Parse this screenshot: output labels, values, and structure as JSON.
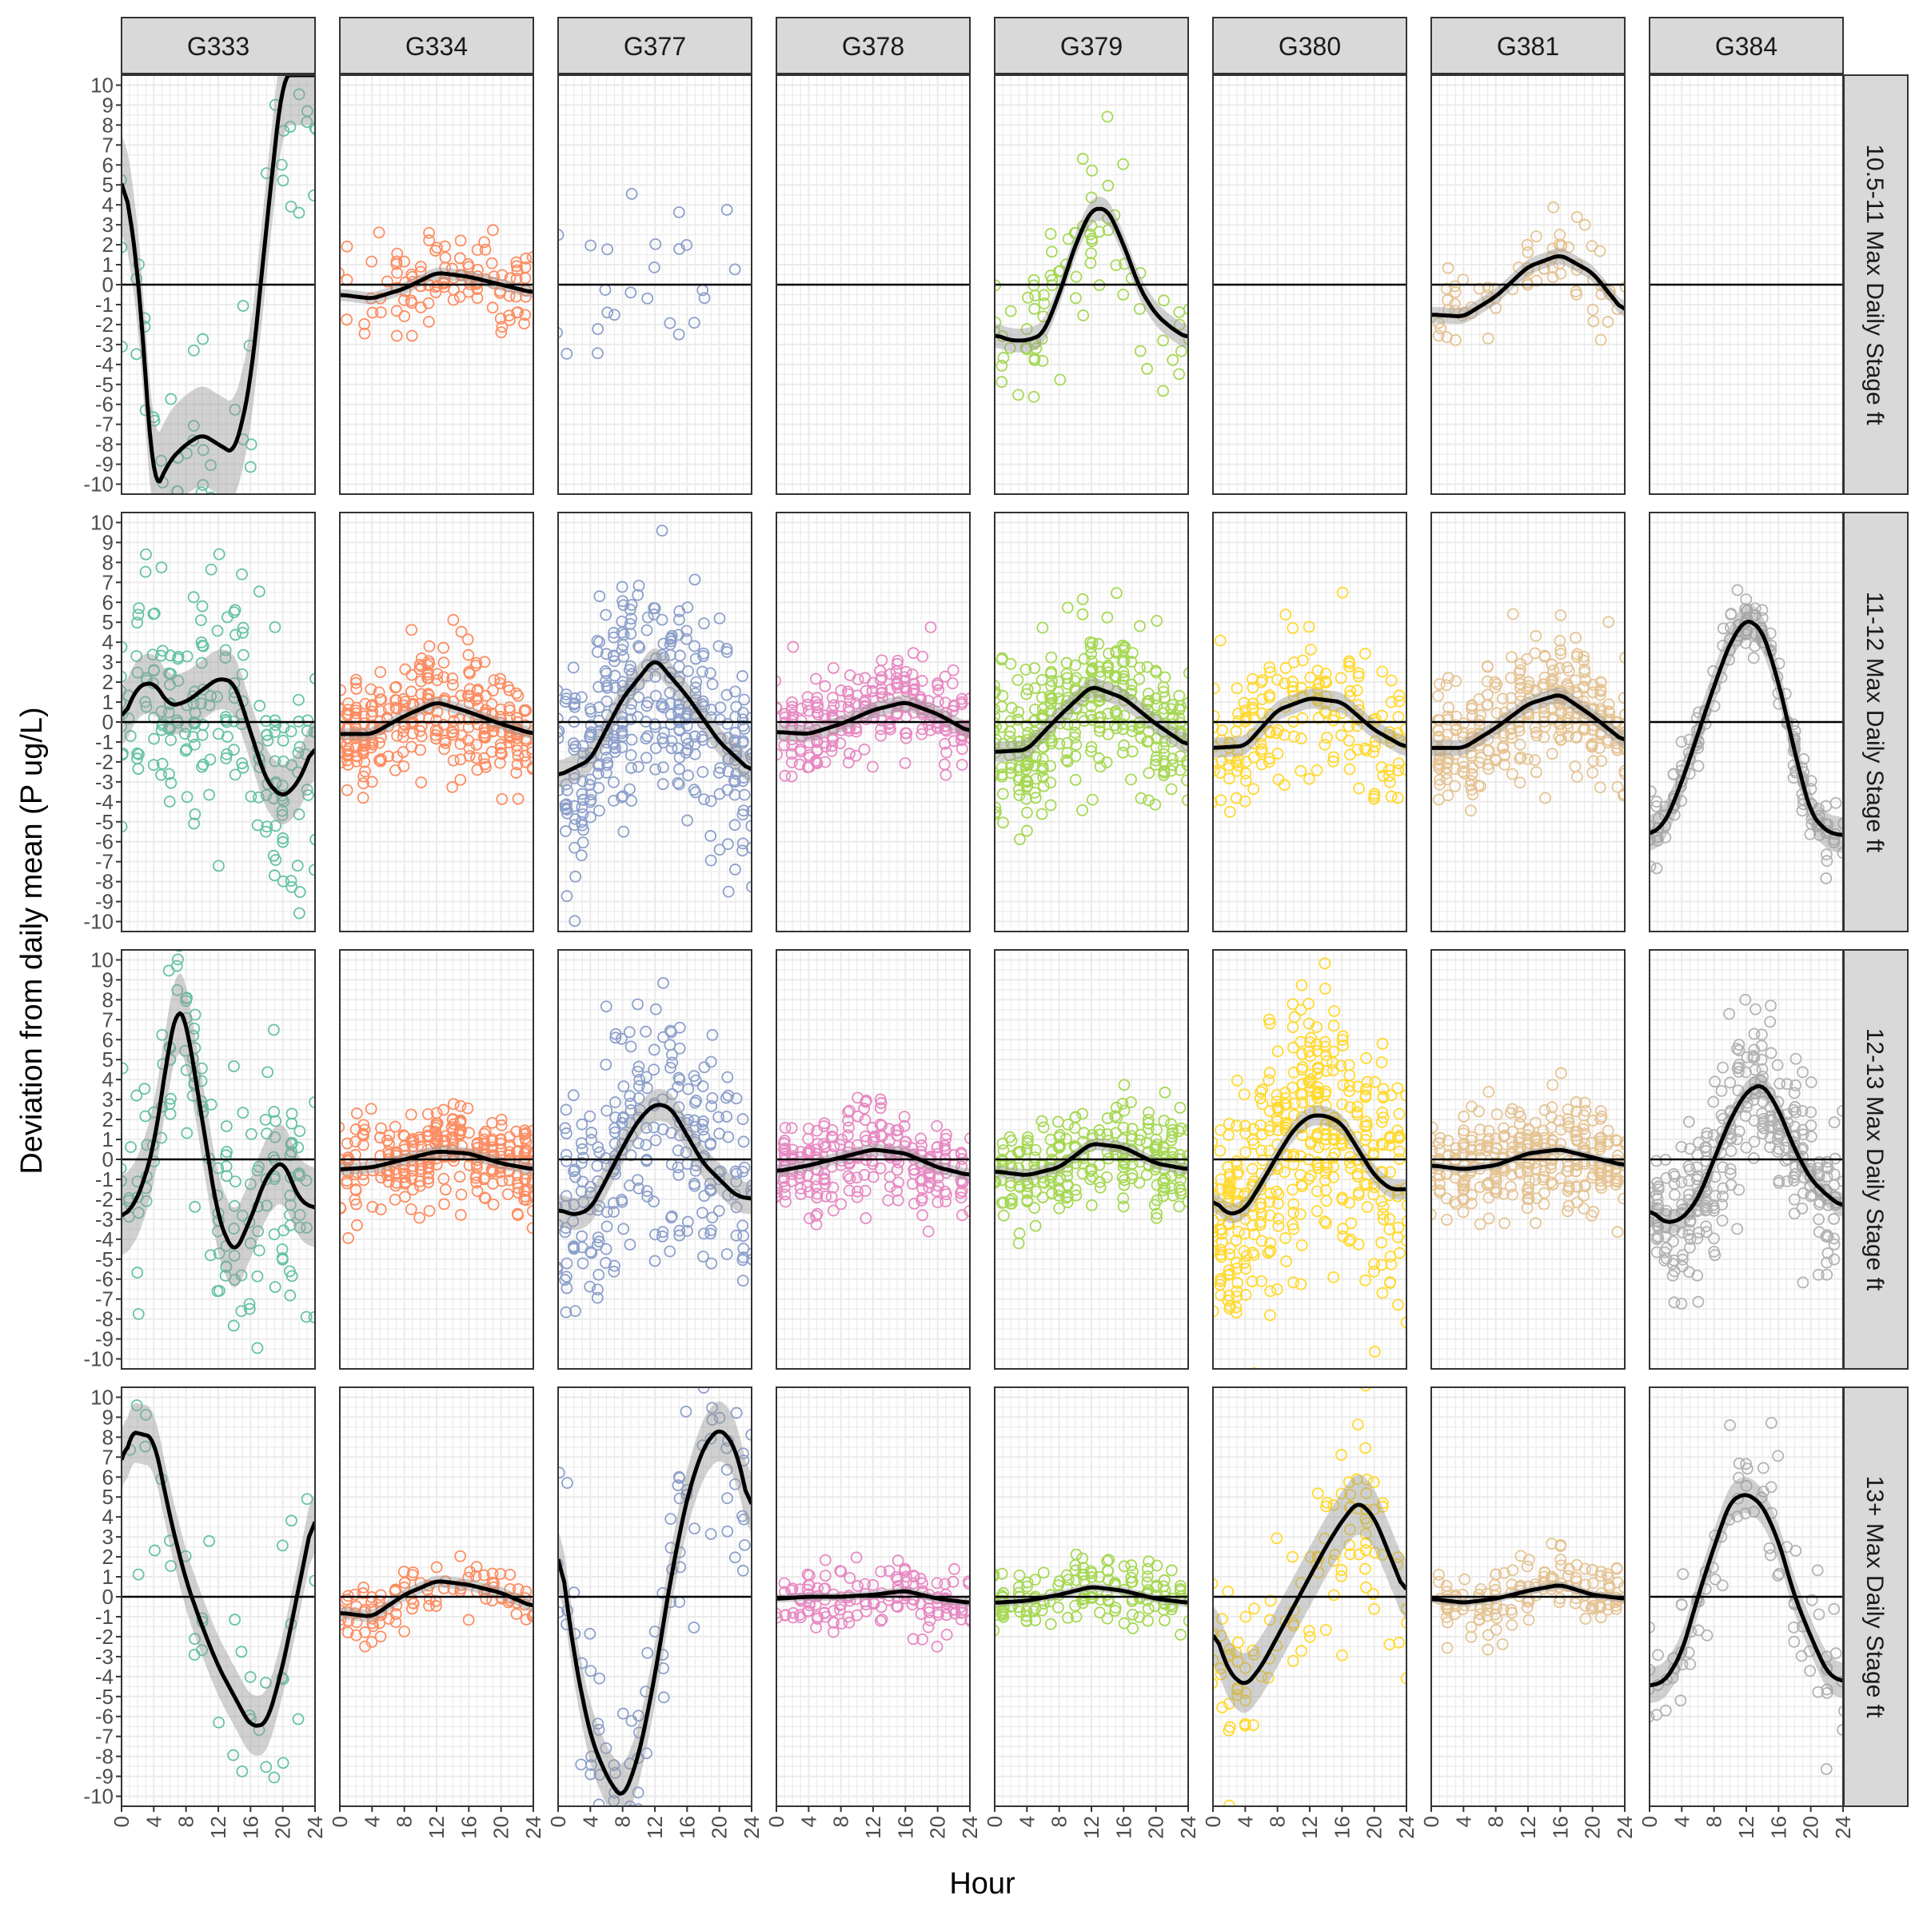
{
  "chart_data": {
    "type": "scatter",
    "xlabel": "Hour",
    "ylabel": "Deviation from daily mean (P ug/L)",
    "xlim": [
      0,
      24
    ],
    "ylim": [
      -10.5,
      10.5
    ],
    "x_ticks": [
      0,
      4,
      8,
      12,
      16,
      20,
      24
    ],
    "y_ticks": [
      -10,
      -9,
      -8,
      -7,
      -6,
      -5,
      -4,
      -3,
      -2,
      -1,
      0,
      1,
      2,
      3,
      4,
      5,
      6,
      7,
      8,
      9,
      10
    ],
    "grid": true,
    "zero_line": 0,
    "legend": "none",
    "columns": [
      {
        "name": "G333",
        "color": "#66C2A5"
      },
      {
        "name": "G334",
        "color": "#FC8D62"
      },
      {
        "name": "G377",
        "color": "#8DA0CB"
      },
      {
        "name": "G378",
        "color": "#E78AC3"
      },
      {
        "name": "G379",
        "color": "#A6D854"
      },
      {
        "name": "G380",
        "color": "#FFD92F"
      },
      {
        "name": "G381",
        "color": "#E5C494"
      },
      {
        "name": "G384",
        "color": "#B3B3B3"
      }
    ],
    "rows": [
      {
        "name": "10.5-11 Max Daily Stage ft"
      },
      {
        "name": "11-12 Max Daily Stage ft"
      },
      {
        "name": "12-13 Max Daily Stage ft"
      },
      {
        "name": "13+ Max Daily Stage ft"
      }
    ],
    "panels": [
      [
        {
          "density": 60,
          "spread": 6,
          "smooth": {
            "x": [
              0,
              2,
              4,
              6,
              8,
              10,
              12,
              14,
              16,
              18,
              20,
              24
            ],
            "y": [
              6,
              1,
              -10.5,
              -8.8,
              -8,
              -7.5,
              -8,
              -8.5,
              -5,
              3,
              10.5,
              10.5
            ]
          },
          "band": 2.5
        },
        {
          "density": 110,
          "spread": 2,
          "smooth": {
            "x": [
              0,
              4,
              8,
              12,
              16,
              20,
              24
            ],
            "y": [
              -0.5,
              -0.7,
              -0.2,
              0.6,
              0.4,
              0,
              -0.4
            ]
          },
          "band": 0.3
        },
        {
          "density": 25,
          "spread": 5,
          "smooth": null,
          "band": 0
        },
        {
          "density": 0,
          "spread": 0,
          "smooth": null,
          "band": 0
        },
        {
          "density": 80,
          "spread": 3,
          "smooth": {
            "x": [
              0,
              2,
              4,
              6,
              8,
              10,
              12,
              14,
              16,
              18,
              20,
              22,
              24
            ],
            "y": [
              -2.5,
              -2.8,
              -2.8,
              -2.5,
              -0.5,
              2,
              3.8,
              3.8,
              2,
              -0.2,
              -1.5,
              -2.2,
              -2.7
            ]
          },
          "band": 0.6
        },
        {
          "density": 0,
          "spread": 0,
          "smooth": null,
          "band": 0
        },
        {
          "density": 70,
          "spread": 1.8,
          "smooth": {
            "x": [
              0,
              4,
              8,
              12,
              16,
              20,
              24
            ],
            "y": [
              -1.5,
              -1.6,
              -0.6,
              0.9,
              1.5,
              0.6,
              -1.4
            ]
          },
          "band": 0.4
        },
        {
          "density": 0,
          "spread": 0,
          "smooth": null,
          "band": 0
        }
      ],
      [
        {
          "density": 200,
          "spread": 5.5,
          "smooth": {
            "x": [
              0,
              2,
              4,
              6,
              8,
              10,
              12,
              14,
              16,
              18,
              20,
              22,
              24
            ],
            "y": [
              0,
              1.8,
              2,
              0.8,
              1,
              1.6,
              2.2,
              2,
              -0.5,
              -3,
              -3.8,
              -3,
              -1
            ]
          },
          "band": 1.5
        },
        {
          "density": 300,
          "spread": 2.5,
          "smooth": {
            "x": [
              0,
              4,
              8,
              12,
              16,
              20,
              24
            ],
            "y": [
              -0.6,
              -0.6,
              0.3,
              1,
              0.5,
              -0.1,
              -0.6
            ]
          },
          "band": 0.3
        },
        {
          "density": 350,
          "spread": 5.5,
          "smooth": {
            "x": [
              0,
              4,
              8,
              12,
              16,
              20,
              24
            ],
            "y": [
              -2.7,
              -1.9,
              1.2,
              3.2,
              1.3,
              -1,
              -2.5
            ]
          },
          "band": 0.7
        },
        {
          "density": 250,
          "spread": 2,
          "smooth": {
            "x": [
              0,
              4,
              8,
              12,
              16,
              20,
              24
            ],
            "y": [
              -0.5,
              -0.6,
              -0.1,
              0.6,
              1,
              0.4,
              -0.5
            ]
          },
          "band": 0.4
        },
        {
          "density": 350,
          "spread": 3.5,
          "smooth": {
            "x": [
              0,
              4,
              8,
              12,
              16,
              20,
              24
            ],
            "y": [
              -1.5,
              -1.4,
              0.3,
              1.8,
              1.2,
              -0.1,
              -1.2
            ]
          },
          "band": 0.5
        },
        {
          "density": 180,
          "spread": 3.5,
          "smooth": {
            "x": [
              0,
              4,
              8,
              12,
              16,
              20,
              24
            ],
            "y": [
              -1.3,
              -1.2,
              0.6,
              1.2,
              1,
              -0.4,
              -1.3
            ]
          },
          "band": 0.5
        },
        {
          "density": 320,
          "spread": 3,
          "smooth": {
            "x": [
              0,
              4,
              8,
              12,
              16,
              20,
              24
            ],
            "y": [
              -1.3,
              -1.3,
              -0.3,
              0.9,
              1.4,
              0.3,
              -1
            ]
          },
          "band": 0.4
        },
        {
          "density": 150,
          "spread": 1.5,
          "smooth": {
            "x": [
              0,
              2,
              4,
              6,
              8,
              10,
              12,
              14,
              16,
              18,
              20,
              22,
              24
            ],
            "y": [
              -5.7,
              -5,
              -3,
              -0.6,
              1.8,
              4,
              5.2,
              4.6,
              2,
              -1.5,
              -4.6,
              -5.5,
              -5.7
            ]
          },
          "band": 0.9
        }
      ],
      [
        {
          "density": 150,
          "spread": 6,
          "smooth": {
            "x": [
              0,
              2,
              4,
              6,
              7,
              8,
              10,
              12,
              14,
              16,
              18,
              20,
              22,
              24
            ],
            "y": [
              -3,
              -2,
              0.6,
              6,
              7.8,
              7,
              2,
              -3,
              -4.8,
              -3,
              -0.8,
              0,
              -2,
              -2.5
            ]
          },
          "band": 2
        },
        {
          "density": 280,
          "spread": 2.2,
          "smooth": {
            "x": [
              0,
              4,
              8,
              12,
              16,
              20,
              24
            ],
            "y": [
              -0.5,
              -0.4,
              0,
              0.4,
              0.3,
              -0.2,
              -0.5
            ]
          },
          "band": 0.3
        },
        {
          "density": 250,
          "spread": 5.5,
          "smooth": {
            "x": [
              0,
              2,
              4,
              6,
              8,
              10,
              12,
              14,
              16,
              18,
              20,
              22,
              24
            ],
            "y": [
              -2.5,
              -2.8,
              -2.5,
              -1,
              0.6,
              2,
              2.8,
              2.6,
              1.2,
              -0.2,
              -1,
              -1.8,
              -2
            ]
          },
          "band": 0.8
        },
        {
          "density": 250,
          "spread": 2,
          "smooth": {
            "x": [
              0,
              4,
              8,
              12,
              16,
              20,
              24
            ],
            "y": [
              -0.6,
              -0.3,
              0.1,
              0.5,
              0.3,
              -0.4,
              -0.8
            ]
          },
          "band": 0.3
        },
        {
          "density": 250,
          "spread": 2.5,
          "smooth": {
            "x": [
              0,
              4,
              8,
              12,
              16,
              20,
              24
            ],
            "y": [
              -0.6,
              -0.8,
              -0.4,
              0.8,
              0.6,
              -0.2,
              -0.5
            ]
          },
          "band": 0.3
        },
        {
          "density": 420,
          "spread": 5.5,
          "smooth": {
            "x": [
              0,
              2,
              4,
              6,
              8,
              10,
              12,
              14,
              16,
              18,
              20,
              22,
              24
            ],
            "y": [
              -2,
              -2.8,
              -2.5,
              -1.2,
              0.2,
              1.5,
              2.2,
              2.2,
              1.8,
              0.5,
              -0.8,
              -1.5,
              -1.5
            ]
          },
          "band": 0.5
        },
        {
          "density": 320,
          "spread": 2.5,
          "smooth": {
            "x": [
              0,
              4,
              8,
              12,
              16,
              20,
              24
            ],
            "y": [
              -0.3,
              -0.5,
              -0.3,
              0.3,
              0.5,
              0.1,
              -0.3
            ]
          },
          "band": 0.2
        },
        {
          "density": 320,
          "spread": 3.5,
          "smooth": {
            "x": [
              0,
              2,
              4,
              6,
              8,
              10,
              12,
              14,
              16,
              18,
              20,
              22,
              24
            ],
            "y": [
              -2.5,
              -3.2,
              -3,
              -2,
              0,
              2,
              3.4,
              3.8,
              2.5,
              0.5,
              -1,
              -1.8,
              -2.4
            ]
          },
          "band": 0.6
        }
      ],
      [
        {
          "density": 40,
          "spread": 5,
          "smooth": {
            "x": [
              0,
              1,
              4,
              6,
              8,
              10,
              12,
              14,
              16,
              18,
              20,
              22,
              24
            ],
            "y": [
              6,
              8.3,
              8,
              4,
              0.8,
              -1.5,
              -3.5,
              -5,
              -6.5,
              -6.4,
              -3.5,
              0.5,
              4.5
            ]
          },
          "band": 1.5
        },
        {
          "density": 100,
          "spread": 1.5,
          "smooth": {
            "x": [
              0,
              4,
              8,
              12,
              16,
              20,
              24
            ],
            "y": [
              -0.8,
              -1,
              0.1,
              0.8,
              0.6,
              0.2,
              -0.5
            ]
          },
          "band": 0.3
        },
        {
          "density": 90,
          "spread": 5.5,
          "smooth": {
            "x": [
              0,
              2,
              4,
              6,
              8,
              10,
              12,
              14,
              16,
              18,
              20,
              22,
              24
            ],
            "y": [
              3,
              -3,
              -7,
              -9,
              -10.2,
              -8,
              -4,
              1,
              5,
              7.5,
              8.5,
              7.5,
              4
            ]
          },
          "band": 1.5
        },
        {
          "density": 150,
          "spread": 1.5,
          "smooth": {
            "x": [
              0,
              4,
              8,
              12,
              16,
              20,
              24
            ],
            "y": [
              -0.1,
              0,
              0,
              0.1,
              0.3,
              -0.1,
              -0.3
            ]
          },
          "band": 0.2
        },
        {
          "density": 150,
          "spread": 1.5,
          "smooth": {
            "x": [
              0,
              4,
              8,
              12,
              16,
              20,
              24
            ],
            "y": [
              -0.3,
              -0.2,
              0.1,
              0.5,
              0.3,
              -0.1,
              -0.3
            ]
          },
          "band": 0.2
        },
        {
          "density": 110,
          "spread": 4,
          "smooth": {
            "x": [
              0,
              2,
              4,
              6,
              8,
              10,
              12,
              14,
              16,
              18,
              20,
              22,
              24
            ],
            "y": [
              -1.5,
              -3.8,
              -4.5,
              -3.5,
              -2,
              -0.5,
              1,
              2.5,
              3.8,
              4.8,
              4,
              2,
              0
            ]
          },
          "band": 1.5
        },
        {
          "density": 150,
          "spread": 1.5,
          "smooth": {
            "x": [
              0,
              4,
              8,
              12,
              16,
              20,
              24
            ],
            "y": [
              -0.1,
              -0.3,
              -0.1,
              0.3,
              0.6,
              0.1,
              -0.1
            ]
          },
          "band": 0.2
        },
        {
          "density": 80,
          "spread": 3,
          "smooth": {
            "x": [
              0,
              2,
              4,
              6,
              8,
              10,
              12,
              14,
              16,
              18,
              20,
              22,
              24
            ],
            "y": [
              -4.5,
              -4.2,
              -2.8,
              0,
              2.5,
              4.8,
              5.2,
              4.6,
              2.8,
              0,
              -2,
              -3.8,
              -4.3
            ]
          },
          "band": 0.9
        }
      ]
    ]
  }
}
